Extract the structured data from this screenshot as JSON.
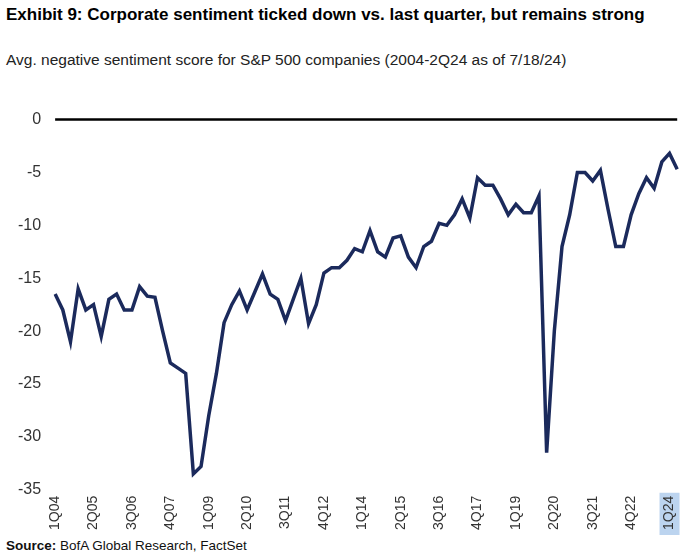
{
  "chart_data": {
    "type": "line",
    "title": "Exhibit 9: Corporate sentiment ticked down vs. last quarter, but remains strong",
    "subtitle": "Avg. negative sentiment score for S&P 500 companies (2004-2Q24 as of 7/18/24)",
    "source": "Source: BofA Global Research, FactSet",
    "categories": [
      "1Q04",
      null,
      null,
      null,
      null,
      "2Q05",
      null,
      null,
      null,
      null,
      "3Q06",
      null,
      null,
      null,
      null,
      "4Q07",
      null,
      null,
      null,
      null,
      "1Q09",
      null,
      null,
      null,
      null,
      "2Q10",
      null,
      null,
      null,
      null,
      "3Q11",
      null,
      null,
      null,
      null,
      "4Q12",
      null,
      null,
      null,
      null,
      "1Q14",
      null,
      null,
      null,
      null,
      "2Q15",
      null,
      null,
      null,
      null,
      "3Q16",
      null,
      null,
      null,
      null,
      "4Q17",
      null,
      null,
      null,
      null,
      "1Q19",
      null,
      null,
      null,
      null,
      "2Q20",
      null,
      null,
      null,
      null,
      "3Q21",
      null,
      null,
      null,
      null,
      "4Q22",
      null,
      null,
      null,
      null,
      "1Q24",
      null
    ],
    "values": [
      -16.5,
      -18,
      -21,
      -16,
      -18,
      -17.5,
      -20.5,
      -17,
      -16.5,
      -18,
      -18,
      -15.8,
      -16.7,
      -16.8,
      -20,
      -23,
      -23.5,
      -24,
      -33.5,
      -32.8,
      -28,
      -24,
      -19.2,
      -17.5,
      -16.2,
      -18,
      -16.3,
      -14.6,
      -16.5,
      -17,
      -19,
      -17,
      -15,
      -19.3,
      -17.5,
      -14.5,
      -14,
      -14,
      -13.3,
      -12.2,
      -12.5,
      -10.5,
      -12.5,
      -13,
      -11.2,
      -11,
      -13,
      -14,
      -12,
      -11.5,
      -9.8,
      -10,
      -9,
      -7.5,
      -9.3,
      -5.5,
      -6.2,
      -6.2,
      -7.5,
      -9,
      -8,
      -8.8,
      -8.8,
      -7.2,
      -31.5,
      -20,
      -12,
      -9,
      -5,
      -5,
      -5.8,
      -4.8,
      -8.5,
      -12,
      -12,
      -9,
      -7,
      -5.5,
      -6.5,
      -4,
      -3.2,
      -4.7
    ],
    "color": "#1b2a5c",
    "ylim": [
      -35,
      0
    ],
    "yticks": [
      -35,
      -30,
      -25,
      -20,
      -15,
      -10,
      -5,
      0
    ],
    "grid": false
  }
}
